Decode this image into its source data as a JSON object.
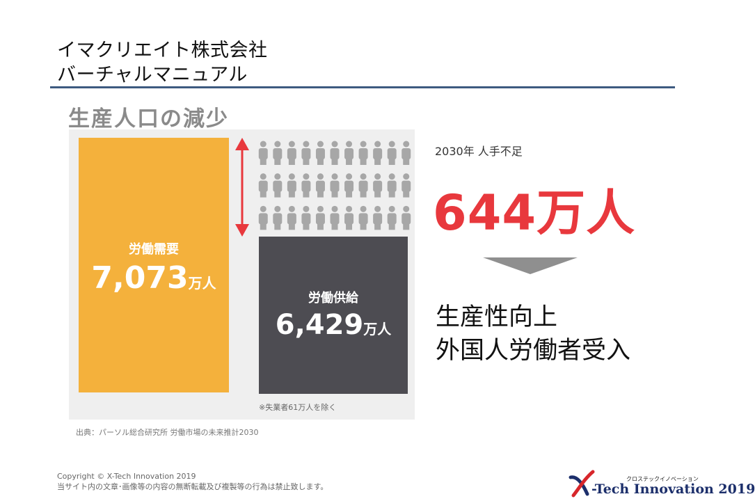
{
  "header": {
    "title_line1": "イマクリエイト株式会社",
    "title_line2": "バーチャルマニュアル"
  },
  "section_title": "生産人口の減少",
  "graphic": {
    "demand": {
      "label": "労働需要",
      "value": "7,073",
      "unit": "万人",
      "color": "#f4b13c"
    },
    "supply": {
      "label": "労働供給",
      "value": "6,429",
      "unit": "万人",
      "color": "#4d4c52"
    },
    "gap_arrow_color": "#e8383d",
    "people_icons": {
      "rows": 3,
      "cols": 11,
      "color": "#a7a7a7"
    },
    "note": "※失業者61万人を除く",
    "source": "出典：パーソル総合研究所 労働市場の未来推計2030"
  },
  "shortage": {
    "year_label": "2030年 人手不足",
    "value": "644万人",
    "value_color": "#e8383d"
  },
  "result": {
    "line1": "生産性向上",
    "line2": "外国人労働者受入"
  },
  "footer": {
    "copyright": "Copyright ©  X-Tech Innovation 2019",
    "notice": "当サイト内の文章･画像等の内容の無断転載及び複製等の行為は禁止致します。"
  },
  "logo": {
    "kana": "クロステックイノベーション",
    "text": "-Tech Innovation 2019"
  }
}
